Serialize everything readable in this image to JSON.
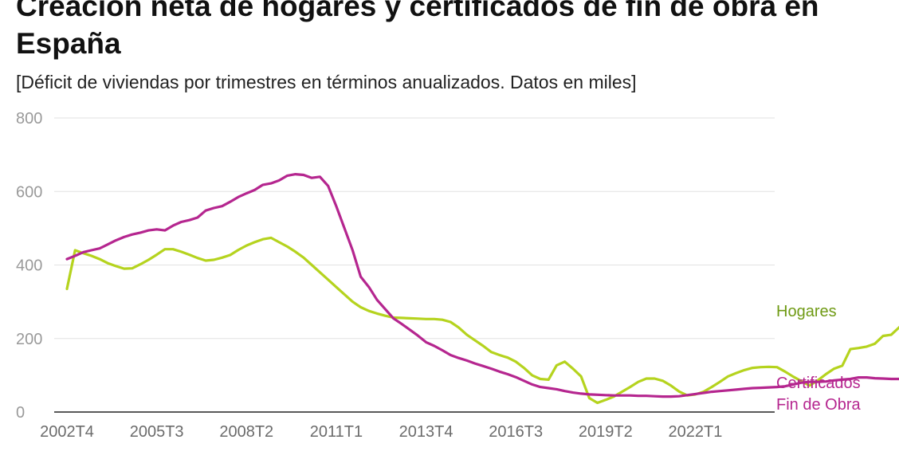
{
  "chart_data": {
    "type": "line",
    "title": "Creación neta de hogares y certificados de fin de obra en España",
    "subtitle": "[Déficit de viviendas por trimestres en términos anualizados. Datos en miles]",
    "x_start": "2002T4",
    "x_ticks": [
      "2002T4",
      "2005T3",
      "2008T2",
      "2011T1",
      "2013T4",
      "2016T3",
      "2019T2",
      "2022T1"
    ],
    "y_ticks": [
      0,
      200,
      400,
      600,
      800
    ],
    "ylim": [
      0,
      800
    ],
    "grid": true,
    "legend": "end-of-line labels on the right",
    "series": [
      {
        "name": "Hogares",
        "label_lines": [
          "Hogares"
        ],
        "color": "#b5d31e",
        "label_color": "#6f9a14",
        "values": [
          335,
          440,
          432,
          425,
          416,
          405,
          397,
          390,
          391,
          402,
          414,
          428,
          443,
          443,
          436,
          428,
          419,
          412,
          414,
          420,
          427,
          441,
          453,
          462,
          470,
          474,
          462,
          450,
          436,
          420,
          400,
          380,
          360,
          340,
          320,
          300,
          285,
          275,
          268,
          262,
          257,
          256,
          255,
          254,
          253,
          253,
          251,
          245,
          230,
          210,
          195,
          180,
          163,
          155,
          148,
          137,
          120,
          100,
          90,
          88,
          127,
          137,
          118,
          97,
          38,
          25,
          33,
          42,
          55,
          68,
          82,
          91,
          91,
          85,
          72,
          56,
          45,
          48,
          55,
          68,
          82,
          97,
          106,
          114,
          120,
          122,
          123,
          122,
          110,
          96,
          84,
          72,
          86,
          103,
          118,
          126,
          171,
          174,
          178,
          186,
          207,
          210,
          231,
          250,
          274,
          283,
          286
        ]
      },
      {
        "name": "Certificados Fin de Obra",
        "label_lines": [
          "Certificados",
          "Fin de Obra"
        ],
        "color": "#b5268f",
        "label_color": "#b5268f",
        "values": [
          416,
          425,
          435,
          440,
          445,
          456,
          467,
          476,
          483,
          488,
          494,
          497,
          494,
          507,
          517,
          522,
          529,
          548,
          555,
          560,
          572,
          585,
          595,
          604,
          618,
          622,
          630,
          643,
          647,
          645,
          637,
          640,
          615,
          560,
          500,
          440,
          368,
          340,
          305,
          280,
          255,
          240,
          224,
          208,
          190,
          180,
          168,
          155,
          147,
          140,
          132,
          125,
          118,
          110,
          103,
          95,
          85,
          75,
          68,
          65,
          62,
          57,
          53,
          50,
          48,
          47,
          46,
          45,
          45,
          45,
          44,
          44,
          43,
          42,
          42,
          43,
          46,
          49,
          52,
          55,
          57,
          59,
          61,
          63,
          65,
          66,
          67,
          68,
          70,
          75,
          80,
          82,
          82,
          83,
          86,
          88,
          90,
          94,
          94,
          92,
          91,
          90,
          90,
          90,
          90,
          90,
          89,
          88
        ]
      }
    ]
  }
}
